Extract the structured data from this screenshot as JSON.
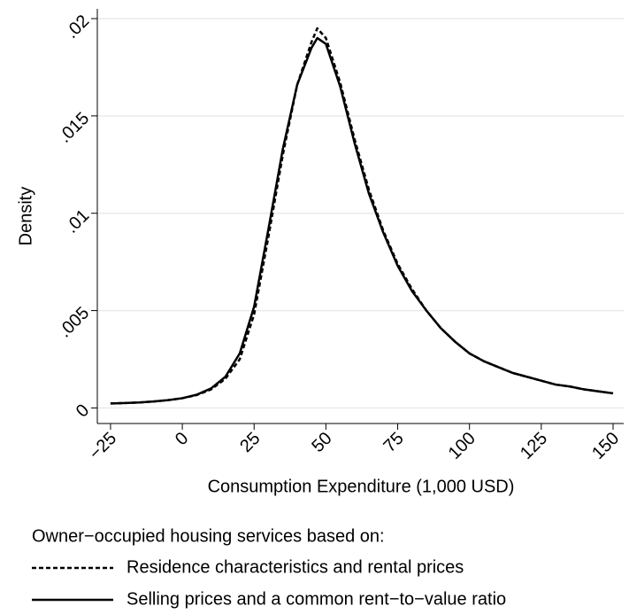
{
  "chart_data": {
    "type": "line",
    "x_label": "Consumption Expenditure (1,000 USD)",
    "y_label": "Density",
    "x": [
      -25,
      -20,
      -15,
      -10,
      -5,
      0,
      5,
      10,
      15,
      20,
      25,
      30,
      35,
      40,
      45,
      47,
      50,
      55,
      60,
      65,
      70,
      75,
      80,
      85,
      90,
      95,
      100,
      105,
      110,
      115,
      120,
      125,
      130,
      135,
      140,
      145,
      150
    ],
    "series": [
      {
        "name": "Residence characteristics and rental prices",
        "color": "#000000",
        "dash": "dashed",
        "values": [
          0.00023,
          0.00025,
          0.00028,
          0.00033,
          0.0004,
          0.0005,
          0.00066,
          0.00095,
          0.0015,
          0.0025,
          0.0048,
          0.0088,
          0.013,
          0.0166,
          0.0188,
          0.0195,
          0.019,
          0.0167,
          0.0138,
          0.0112,
          0.0091,
          0.0074,
          0.0061,
          0.005,
          0.0041,
          0.0034,
          0.0028,
          0.0024,
          0.0021,
          0.0018,
          0.0016,
          0.0014,
          0.0012,
          0.0011,
          0.00095,
          0.00085,
          0.00075
        ]
      },
      {
        "name": "Selling prices and a common rent−to−value ratio",
        "color": "#000000",
        "dash": "solid",
        "values": [
          0.00023,
          0.00025,
          0.00028,
          0.00033,
          0.0004,
          0.0005,
          0.00068,
          0.001,
          0.0016,
          0.0028,
          0.0052,
          0.0092,
          0.0133,
          0.0166,
          0.0185,
          0.019,
          0.0187,
          0.0165,
          0.0136,
          0.011,
          0.009,
          0.0073,
          0.006,
          0.005,
          0.0041,
          0.0034,
          0.0028,
          0.0024,
          0.0021,
          0.0018,
          0.0016,
          0.0014,
          0.0012,
          0.0011,
          0.00095,
          0.00085,
          0.00075
        ]
      }
    ],
    "legend_title": "Owner−occupied housing services based on:",
    "legend": "bottom",
    "xlim": [
      -29.6,
      153.7
    ],
    "xticks": [
      {
        "value": -25,
        "label": "−25"
      },
      0,
      25,
      50,
      75,
      100,
      125,
      150
    ],
    "ylim": [
      -0.0008,
      0.0205
    ],
    "yticks": [
      0,
      {
        "value": 0.005,
        "label": ".005"
      },
      {
        "value": 0.01,
        "label": ".01"
      },
      {
        "value": 0.015,
        "label": ".015"
      },
      {
        "value": 0.02,
        "label": ".02"
      }
    ],
    "grid": true
  }
}
